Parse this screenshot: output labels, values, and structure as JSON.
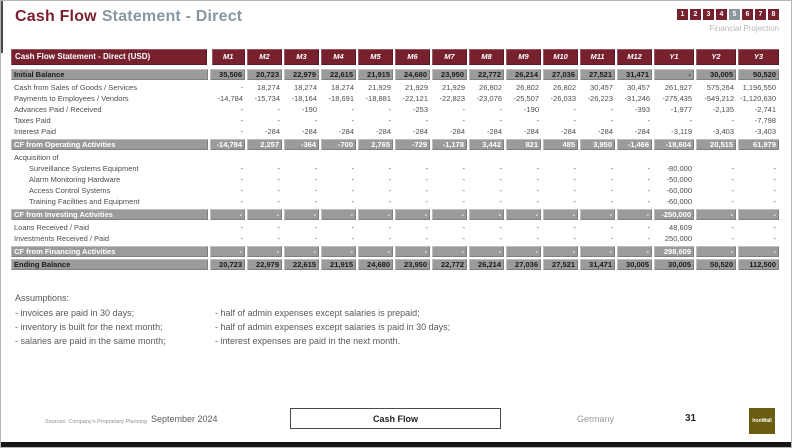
{
  "header": {
    "title_primary": "Cash Flow",
    "title_secondary": "Statement - Direct",
    "pager_pages": [
      "1",
      "2",
      "3",
      "4",
      "5",
      "6",
      "7",
      "8"
    ],
    "pager_active": "5",
    "pager_caption": "Financial Projection"
  },
  "table": {
    "title": "Cash Flow Statement - Direct (USD)",
    "columns": [
      "M1",
      "M2",
      "M3",
      "M4",
      "M5",
      "M6",
      "M7",
      "M8",
      "M9",
      "M10",
      "M11",
      "M12",
      "Y1",
      "Y2",
      "Y3"
    ],
    "rows": [
      {
        "label": "Initial Balance",
        "style": "total",
        "indent": false,
        "values": [
          "35,506",
          "20,723",
          "22,979",
          "22,615",
          "21,915",
          "24,680",
          "23,950",
          "22,772",
          "26,214",
          "27,036",
          "27,521",
          "31,471",
          "-",
          "30,005",
          "50,520"
        ]
      },
      {
        "label": "Cash from Sales of Goods / Services",
        "style": "normal",
        "indent": false,
        "values": [
          "-",
          "18,274",
          "18,274",
          "18,274",
          "21,929",
          "21,929",
          "21,929",
          "26,802",
          "26,802",
          "26,802",
          "30,457",
          "30,457",
          "261,927",
          "575,264",
          "1,196,550"
        ]
      },
      {
        "label": "Payments to Employees / Vendors",
        "style": "normal",
        "indent": false,
        "values": [
          "-14,784",
          "-15,734",
          "-18,164",
          "-18,691",
          "-18,881",
          "-22,121",
          "-22,823",
          "-23,076",
          "-25,507",
          "-26,033",
          "-26,223",
          "-31,246",
          "-275,435",
          "-549,212",
          "-1,120,630"
        ]
      },
      {
        "label": "Advances Paid / Received",
        "style": "normal",
        "indent": false,
        "values": [
          "-",
          "-",
          "-190",
          "-",
          "-",
          "-253",
          "-",
          "-",
          "-190",
          "-",
          "-",
          "-393",
          "-1,977",
          "-2,135",
          "-2,741"
        ]
      },
      {
        "label": "Taxes Paid",
        "style": "normal",
        "indent": false,
        "values": [
          "-",
          "-",
          "-",
          "-",
          "-",
          "-",
          "-",
          "-",
          "-",
          "-",
          "-",
          "-",
          "-",
          "-",
          "-7,798"
        ]
      },
      {
        "label": "Interest Paid",
        "style": "normal",
        "indent": false,
        "values": [
          "-",
          "-284",
          "-284",
          "-284",
          "-284",
          "-284",
          "-284",
          "-284",
          "-284",
          "-284",
          "-284",
          "-284",
          "-3,119",
          "-3,403",
          "-3,403"
        ]
      },
      {
        "label": "CF from Operating Activities",
        "style": "band",
        "indent": false,
        "values": [
          "-14,784",
          "2,257",
          "-364",
          "-700",
          "2,765",
          "-729",
          "-1,178",
          "3,442",
          "821",
          "485",
          "3,950",
          "-1,466",
          "-18,604",
          "20,515",
          "61,979"
        ]
      },
      {
        "label": "Acquisition of",
        "style": "section",
        "indent": false,
        "values": [
          "",
          "",
          "",
          "",
          "",
          "",
          "",
          "",
          "",
          "",
          "",
          "",
          "",
          "",
          ""
        ]
      },
      {
        "label": "Surveillance Systems Equipment",
        "style": "normal",
        "indent": true,
        "values": [
          "-",
          "-",
          "-",
          "-",
          "-",
          "-",
          "-",
          "-",
          "-",
          "-",
          "-",
          "-",
          "-80,000",
          "-",
          "-"
        ]
      },
      {
        "label": "Alarm Monitoring Hardware",
        "style": "normal",
        "indent": true,
        "values": [
          "-",
          "-",
          "-",
          "-",
          "-",
          "-",
          "-",
          "-",
          "-",
          "-",
          "-",
          "-",
          "-50,000",
          "-",
          "-"
        ]
      },
      {
        "label": "Access Control Systems",
        "style": "normal",
        "indent": true,
        "values": [
          "-",
          "-",
          "-",
          "-",
          "-",
          "-",
          "-",
          "-",
          "-",
          "-",
          "-",
          "-",
          "-60,000",
          "-",
          "-"
        ]
      },
      {
        "label": "Training Facilities and Equipment",
        "style": "normal",
        "indent": true,
        "values": [
          "-",
          "-",
          "-",
          "-",
          "-",
          "-",
          "-",
          "-",
          "-",
          "-",
          "-",
          "-",
          "-60,000",
          "-",
          "-"
        ]
      },
      {
        "label": "CF from Investing Activities",
        "style": "band",
        "indent": false,
        "values": [
          "-",
          "-",
          "-",
          "-",
          "-",
          "-",
          "-",
          "-",
          "-",
          "-",
          "-",
          "-",
          "-250,000",
          "-",
          "-"
        ]
      },
      {
        "label": "Loans Received / Paid",
        "style": "normal",
        "indent": false,
        "values": [
          "-",
          "-",
          "-",
          "-",
          "-",
          "-",
          "-",
          "-",
          "-",
          "-",
          "-",
          "-",
          "48,609",
          "-",
          "-"
        ]
      },
      {
        "label": "Investments Received / Paid",
        "style": "normal",
        "indent": false,
        "values": [
          "-",
          "-",
          "-",
          "-",
          "-",
          "-",
          "-",
          "-",
          "-",
          "-",
          "-",
          "-",
          "250,000",
          "-",
          "-"
        ]
      },
      {
        "label": "CF from Financing Activities",
        "style": "band",
        "indent": false,
        "values": [
          "-",
          "-",
          "-",
          "-",
          "-",
          "-",
          "-",
          "-",
          "-",
          "-",
          "-",
          "-",
          "298,609",
          "-",
          "-"
        ]
      },
      {
        "label": "Ending Balance",
        "style": "total",
        "indent": false,
        "values": [
          "20,723",
          "22,979",
          "22,615",
          "21,915",
          "24,680",
          "23,950",
          "22,772",
          "26,214",
          "27,036",
          "27,521",
          "31,471",
          "30,005",
          "30,005",
          "50,520",
          "112,500"
        ]
      }
    ]
  },
  "assumptions": {
    "heading": "Assumptions:",
    "col1": [
      "- invoices are paid in 30 days;",
      "- inventory is built for the next month;",
      "- salaries are paid in the same month;"
    ],
    "col2": [
      "- half of admin expenses except salaries is prepaid;",
      "- half of admin expenses except salaries is paid in 30 days;",
      "- interest expenses are paid in the next month."
    ]
  },
  "footer": {
    "sources": "Sources: Company's Proprietary Planning",
    "date": "September 2024",
    "section_label": "Cash Flow",
    "country": "Germany",
    "page_number": "31",
    "logo_text": "IronWall"
  },
  "colors": {
    "maroon": "#77212F",
    "band_gray": "#9B9B9B",
    "accent_gray": "#8B97A0",
    "logo_olive": "#6B5D10"
  }
}
